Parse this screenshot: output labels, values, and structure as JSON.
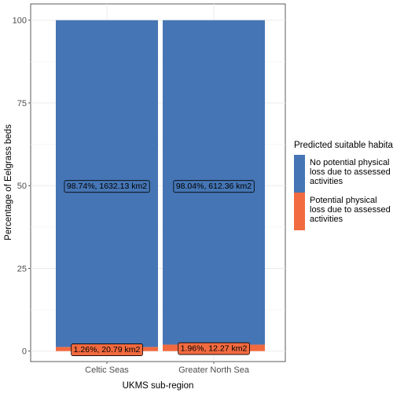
{
  "chart_data": {
    "type": "bar",
    "stacked": true,
    "categories": [
      "Celtic Seas",
      "Greater North Sea"
    ],
    "series": [
      {
        "name": "Potential physical loss due to assessed activities",
        "color": "#f26a3f",
        "values": [
          1.26,
          1.96
        ],
        "labels": [
          "1.26%,   20.79 km2",
          "1.96%,   12.27 km2"
        ]
      },
      {
        "name": "No potential physical loss due to assessed activities",
        "color": "#4575b4",
        "values": [
          98.74,
          98.04
        ],
        "labels": [
          "98.74%, 1632.13 km2",
          "98.04%,  612.36 km2"
        ]
      }
    ],
    "xlabel": "UKMS sub-region",
    "ylabel": "Percentage of Eelgrass beds",
    "ylim": [
      0,
      100
    ],
    "yticks": [
      0,
      25,
      50,
      75,
      100
    ],
    "grid": true,
    "legend": {
      "title": "Predicted suitable habitat",
      "placement": "right",
      "items": [
        {
          "label": "No potential physical loss due to assessed activities",
          "color": "#4575b4"
        },
        {
          "label": "Potential physical loss due to assessed activities",
          "color": "#f26a3f"
        }
      ]
    }
  }
}
